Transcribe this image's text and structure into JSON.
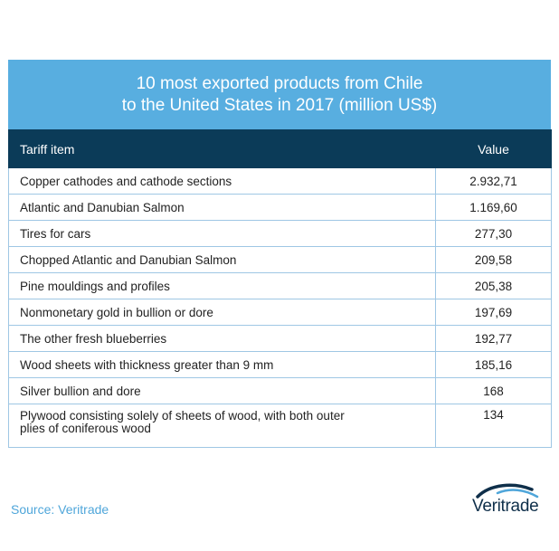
{
  "chart_data": {
    "type": "table",
    "title_lines": [
      "10 most exported products from Chile",
      "to the United States in 2017 (million US$)"
    ],
    "columns": [
      "Tariff item",
      "Value"
    ],
    "rows": [
      {
        "item": "Copper cathodes and cathode sections",
        "value": "2.932,71"
      },
      {
        "item": "Atlantic and Danubian Salmon",
        "value": "1.169,60"
      },
      {
        "item": "Tires for cars",
        "value": "277,30"
      },
      {
        "item": "Chopped Atlantic and Danubian Salmon",
        "value": "209,58"
      },
      {
        "item": "Pine mouldings and profiles",
        "value": "205,38"
      },
      {
        "item": "Nonmonetary gold in bullion or dore",
        "value": "197,69"
      },
      {
        "item": "The other fresh blueberries",
        "value": "192,77"
      },
      {
        "item": "Wood sheets with thickness greater than 9 mm",
        "value": "185,16"
      },
      {
        "item": "Silver bullion and dore",
        "value": "168"
      },
      {
        "item_lines": [
          "Plywood consisting solely of sheets of wood, with both outer",
          "plies of coniferous wood"
        ],
        "value": "134"
      }
    ]
  },
  "footer": {
    "source": "Source: Veritrade",
    "logo_text": "Veritrade"
  },
  "colors": {
    "title_bg": "#58aee0",
    "header_bg": "#0b3b58",
    "border": "#9fc7e4",
    "source_text": "#4fa6da"
  },
  "icons": {
    "logo": "veritrade-logo-icon"
  }
}
